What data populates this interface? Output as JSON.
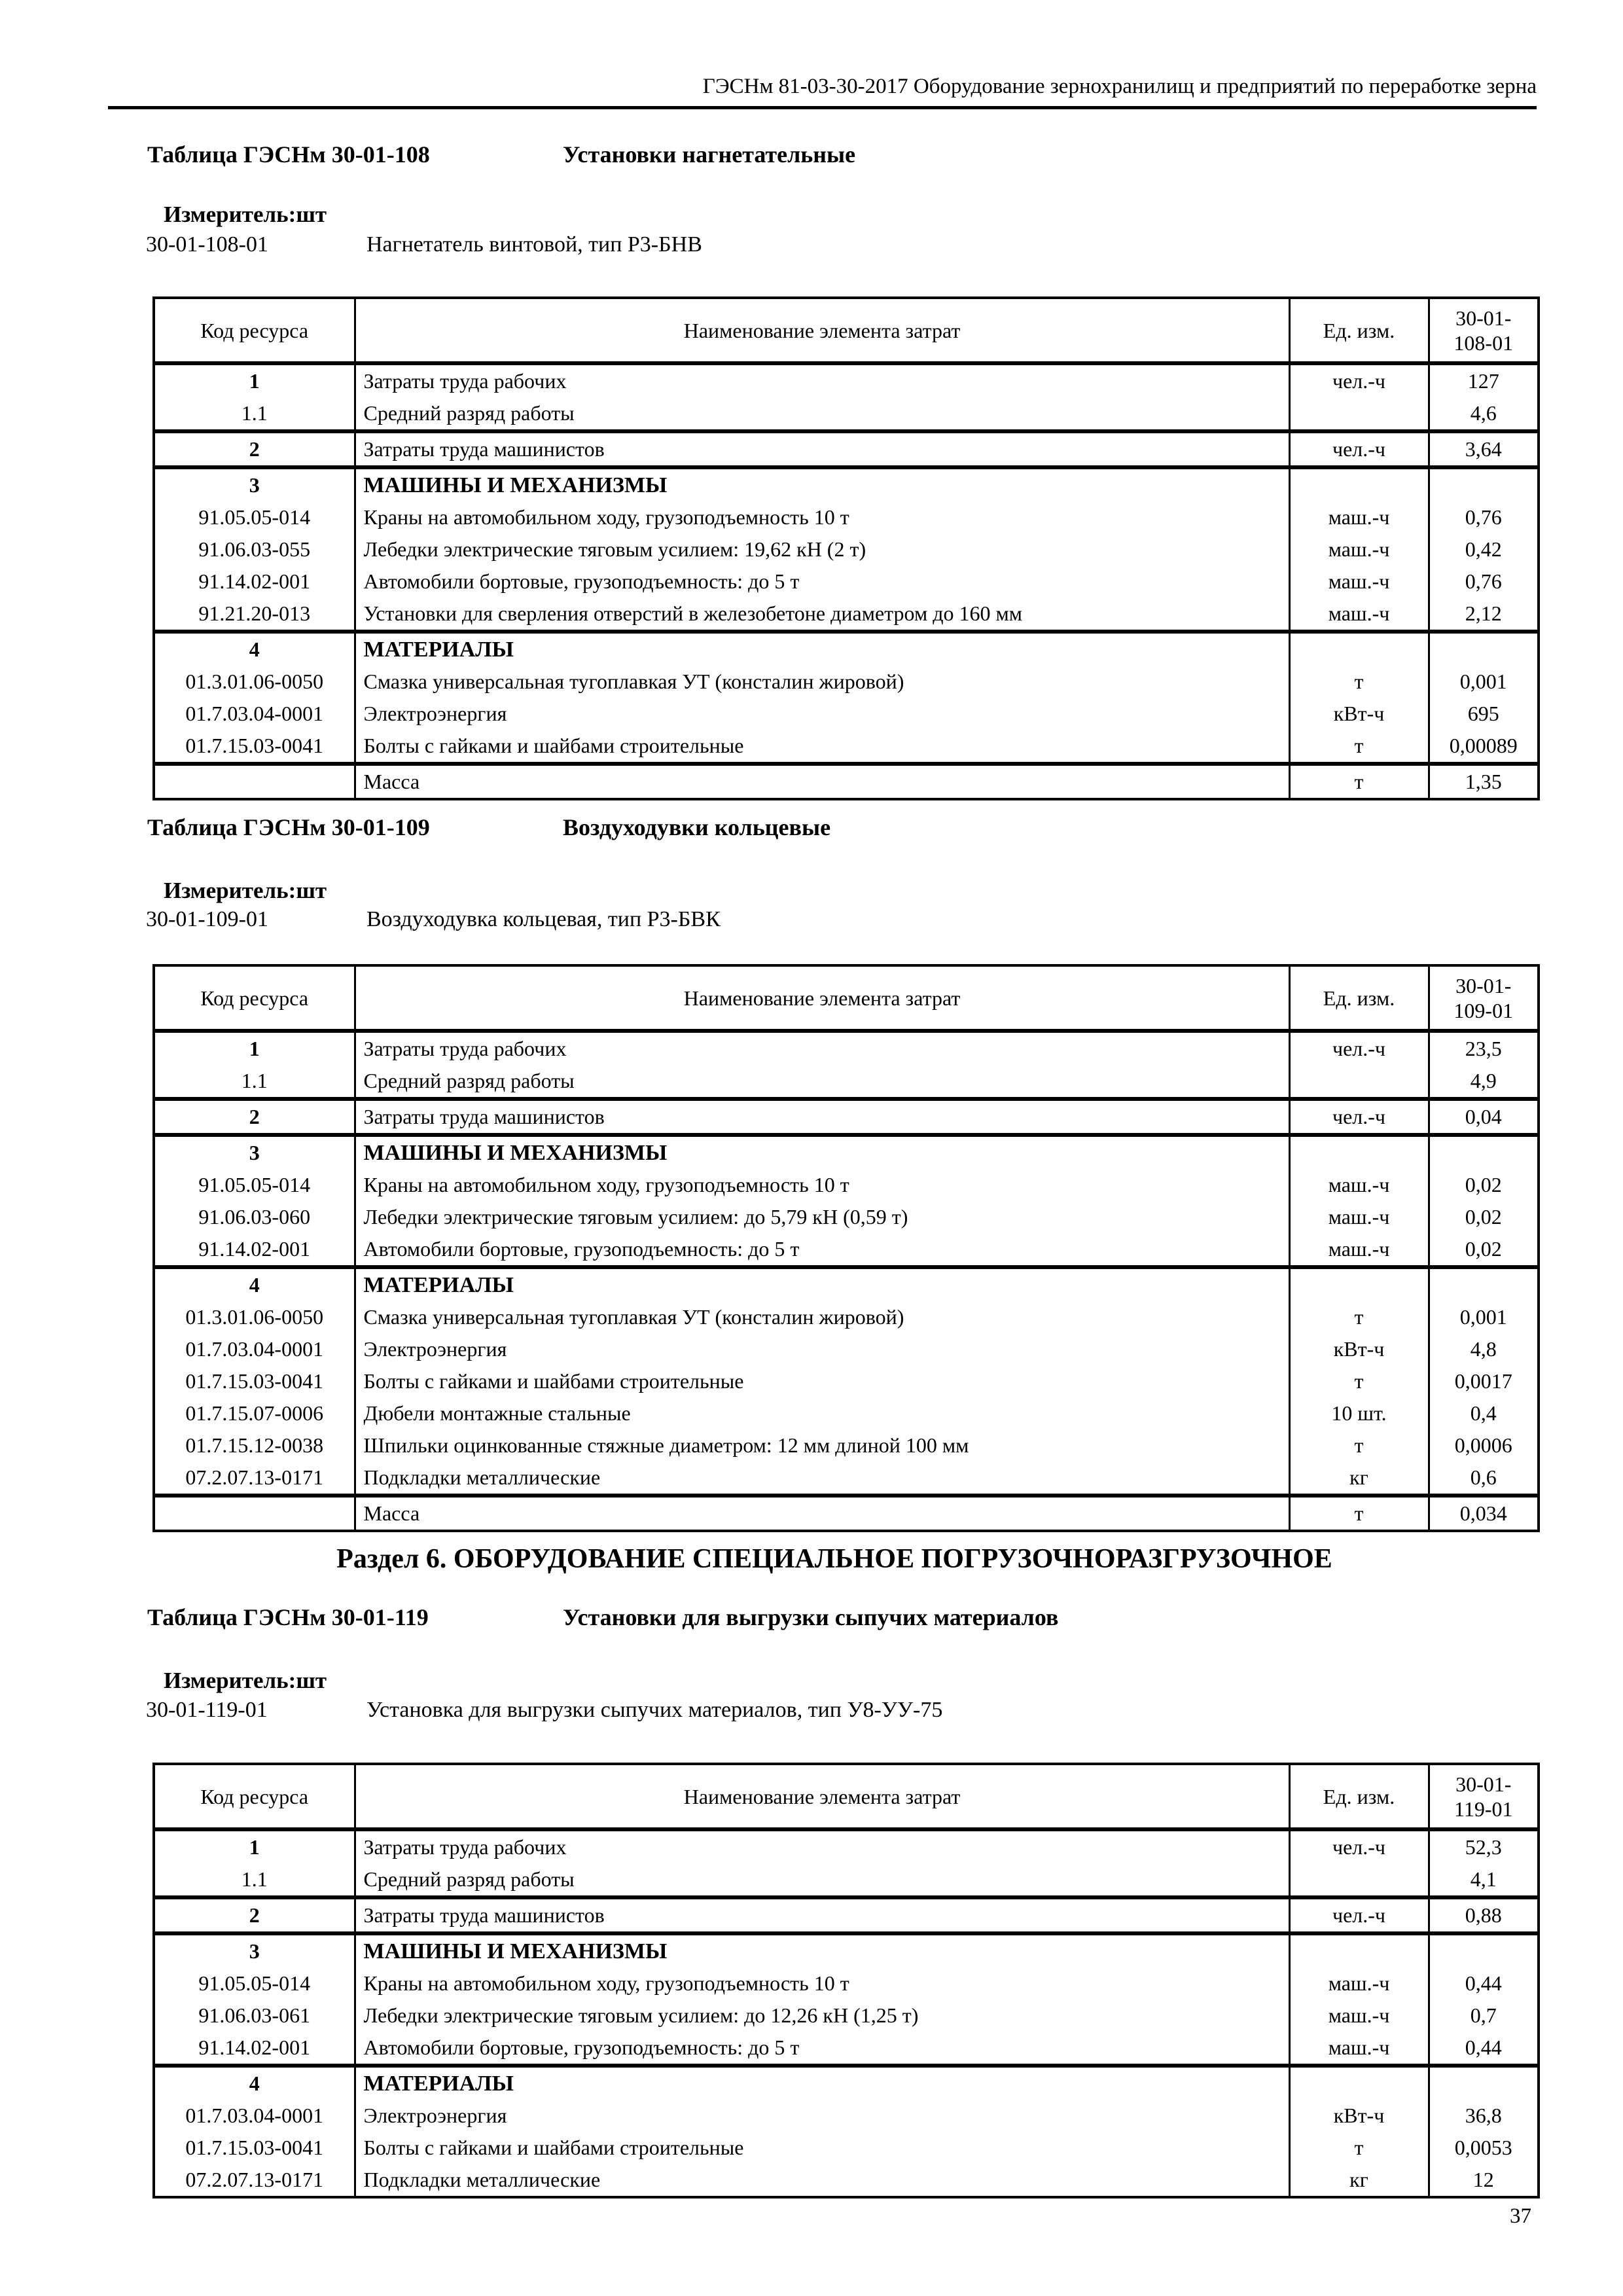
{
  "colors": {
    "ink": "#000000",
    "paper": "#ffffff"
  },
  "page_header": "ГЭСНм 81-03-30-2017 Оборудование зернохранилищ и предприятий по переработке зерна",
  "section_heading": "Раздел 6. ОБОРУДОВАНИЕ СПЕЦИАЛЬНОЕ ПОГРУЗОЧНОРАЗГРУЗОЧНОЕ",
  "page_number": "37",
  "tables": [
    {
      "title_label": "Таблица ГЭСНм 30-01-108",
      "title_name": "Установки нагнетательные",
      "measurer_label": "Измеритель:",
      "measurer_value": "шт",
      "item_code": "30-01-108-01",
      "item_name": "Нагнетатель винтовой, тип Р3-БНВ",
      "col_headers": [
        "Код ресурса",
        "Наименование элемента затрат",
        "Ед. изм."
      ],
      "header_code": [
        "30-01-",
        "108-01"
      ],
      "rows": [
        {
          "code": "1",
          "name": "Затраты труда рабочих",
          "unit": "чел.-ч",
          "value": "127",
          "code_bold": true
        },
        {
          "code": "1.1",
          "name": "Средний разряд работы",
          "unit": "",
          "value": "4,6"
        },
        {
          "code": "2",
          "name": "Затраты труда машинистов",
          "unit": "чел.-ч",
          "value": "3,64",
          "code_bold": true,
          "sep": true
        },
        {
          "code": "3",
          "name": "МАШИНЫ И МЕХАНИЗМЫ",
          "unit": "",
          "value": "",
          "code_bold": true,
          "name_bold": true,
          "sep": true
        },
        {
          "code": "91.05.05-014",
          "name": "Краны на автомобильном ходу, грузоподъемность 10 т",
          "unit": "маш.-ч",
          "value": "0,76"
        },
        {
          "code": "91.06.03-055",
          "name": "Лебедки электрические тяговым усилием: 19,62 кН (2 т)",
          "unit": "маш.-ч",
          "value": "0,42"
        },
        {
          "code": "91.14.02-001",
          "name": "Автомобили бортовые, грузоподъемность: до 5 т",
          "unit": "маш.-ч",
          "value": "0,76"
        },
        {
          "code": "91.21.20-013",
          "name": "Установки для сверления отверстий в железобетоне диаметром до 160 мм",
          "unit": "маш.-ч",
          "value": "2,12"
        },
        {
          "code": "4",
          "name": "МАТЕРИАЛЫ",
          "unit": "",
          "value": "",
          "code_bold": true,
          "name_bold": true,
          "sep": true
        },
        {
          "code": "01.3.01.06-0050",
          "name": "Смазка универсальная тугоплавкая УТ (консталин жировой)",
          "unit": "т",
          "value": "0,001"
        },
        {
          "code": "01.7.03.04-0001",
          "name": "Электроэнергия",
          "unit": "кВт-ч",
          "value": "695"
        },
        {
          "code": "01.7.15.03-0041",
          "name": "Болты с гайками и шайбами строительные",
          "unit": "т",
          "value": "0,00089"
        },
        {
          "code": "",
          "name": "Масса",
          "unit": "т",
          "value": "1,35",
          "sep": true
        }
      ]
    },
    {
      "title_label": "Таблица ГЭСНм 30-01-109",
      "title_name": "Воздуходувки кольцевые",
      "measurer_label": "Измеритель:",
      "measurer_value": "шт",
      "item_code": "30-01-109-01",
      "item_name": "Воздуходувка кольцевая, тип Р3-БВК",
      "col_headers": [
        "Код ресурса",
        "Наименование элемента затрат",
        "Ед. изм."
      ],
      "header_code": [
        "30-01-",
        "109-01"
      ],
      "rows": [
        {
          "code": "1",
          "name": "Затраты труда рабочих",
          "unit": "чел.-ч",
          "value": "23,5",
          "code_bold": true
        },
        {
          "code": "1.1",
          "name": "Средний разряд работы",
          "unit": "",
          "value": "4,9"
        },
        {
          "code": "2",
          "name": "Затраты труда машинистов",
          "unit": "чел.-ч",
          "value": "0,04",
          "code_bold": true,
          "sep": true
        },
        {
          "code": "3",
          "name": "МАШИНЫ И МЕХАНИЗМЫ",
          "unit": "",
          "value": "",
          "code_bold": true,
          "name_bold": true,
          "sep": true
        },
        {
          "code": "91.05.05-014",
          "name": "Краны на автомобильном ходу, грузоподъемность 10 т",
          "unit": "маш.-ч",
          "value": "0,02"
        },
        {
          "code": "91.06.03-060",
          "name": "Лебедки электрические тяговым усилием: до 5,79 кН (0,59 т)",
          "unit": "маш.-ч",
          "value": "0,02"
        },
        {
          "code": "91.14.02-001",
          "name": "Автомобили бортовые, грузоподъемность: до 5 т",
          "unit": "маш.-ч",
          "value": "0,02"
        },
        {
          "code": "4",
          "name": "МАТЕРИАЛЫ",
          "unit": "",
          "value": "",
          "code_bold": true,
          "name_bold": true,
          "sep": true
        },
        {
          "code": "01.3.01.06-0050",
          "name": "Смазка универсальная тугоплавкая УТ (консталин жировой)",
          "unit": "т",
          "value": "0,001"
        },
        {
          "code": "01.7.03.04-0001",
          "name": "Электроэнергия",
          "unit": "кВт-ч",
          "value": "4,8"
        },
        {
          "code": "01.7.15.03-0041",
          "name": "Болты с гайками и шайбами строительные",
          "unit": "т",
          "value": "0,0017"
        },
        {
          "code": "01.7.15.07-0006",
          "name": "Дюбели монтажные стальные",
          "unit": "10 шт.",
          "value": "0,4"
        },
        {
          "code": "01.7.15.12-0038",
          "name": "Шпильки оцинкованные стяжные диаметром: 12 мм длиной 100 мм",
          "unit": "т",
          "value": "0,0006"
        },
        {
          "code": "07.2.07.13-0171",
          "name": "Подкладки металлические",
          "unit": "кг",
          "value": "0,6"
        },
        {
          "code": "",
          "name": "Масса",
          "unit": "т",
          "value": "0,034",
          "sep": true
        }
      ]
    },
    {
      "title_label": "Таблица ГЭСНм 30-01-119",
      "title_name": "Установки для выгрузки сыпучих материалов",
      "measurer_label": "Измеритель:",
      "measurer_value": "шт",
      "item_code": "30-01-119-01",
      "item_name": "Установка для выгрузки сыпучих материалов, тип У8-УУ-75",
      "col_headers": [
        "Код ресурса",
        "Наименование элемента затрат",
        "Ед. изм."
      ],
      "header_code": [
        "30-01-",
        "119-01"
      ],
      "rows": [
        {
          "code": "1",
          "name": "Затраты труда рабочих",
          "unit": "чел.-ч",
          "value": "52,3",
          "code_bold": true
        },
        {
          "code": "1.1",
          "name": "Средний разряд работы",
          "unit": "",
          "value": "4,1"
        },
        {
          "code": "2",
          "name": "Затраты труда машинистов",
          "unit": "чел.-ч",
          "value": "0,88",
          "code_bold": true,
          "sep": true
        },
        {
          "code": "3",
          "name": "МАШИНЫ И МЕХАНИЗМЫ",
          "unit": "",
          "value": "",
          "code_bold": true,
          "name_bold": true,
          "sep": true
        },
        {
          "code": "91.05.05-014",
          "name": "Краны на автомобильном ходу, грузоподъемность 10 т",
          "unit": "маш.-ч",
          "value": "0,44"
        },
        {
          "code": "91.06.03-061",
          "name": "Лебедки электрические тяговым усилием: до 12,26 кН (1,25 т)",
          "unit": "маш.-ч",
          "value": "0,7"
        },
        {
          "code": "91.14.02-001",
          "name": "Автомобили бортовые, грузоподъемность: до 5 т",
          "unit": "маш.-ч",
          "value": "0,44"
        },
        {
          "code": "4",
          "name": "МАТЕРИАЛЫ",
          "unit": "",
          "value": "",
          "code_bold": true,
          "name_bold": true,
          "sep": true
        },
        {
          "code": "01.7.03.04-0001",
          "name": "Электроэнергия",
          "unit": "кВт-ч",
          "value": "36,8"
        },
        {
          "code": "01.7.15.03-0041",
          "name": "Болты с гайками и шайбами строительные",
          "unit": "т",
          "value": "0,0053"
        },
        {
          "code": "07.2.07.13-0171",
          "name": "Подкладки металлические",
          "unit": "кг",
          "value": "12"
        }
      ]
    }
  ]
}
